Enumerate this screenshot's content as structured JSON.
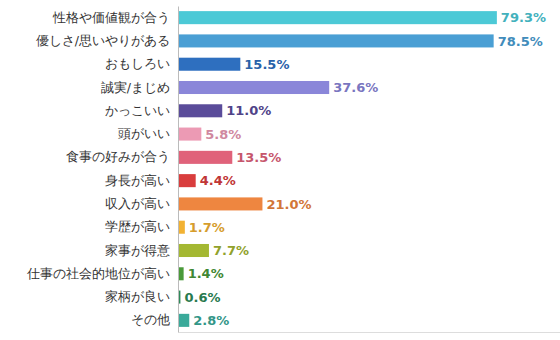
{
  "chart_data": {
    "type": "bar",
    "orientation": "horizontal",
    "categories": [
      "性格や価値観が合う",
      "優しさ/思いやりがある",
      "おもしろい",
      "誠実/まじめ",
      "かっこいい",
      "頭がいい",
      "食事の好みが合う",
      "身長が高い",
      "収入が高い",
      "学歴が高い",
      "家事が得意",
      "仕事の社会的地位が高い",
      "家柄が良い",
      "その他"
    ],
    "values": [
      79.3,
      78.5,
      15.5,
      37.6,
      11.0,
      5.8,
      13.5,
      4.4,
      21.0,
      1.7,
      7.7,
      1.4,
      0.6,
      2.8
    ],
    "value_labels": [
      "79.3%",
      "78.5%",
      "15.5%",
      "37.6%",
      "11.0%",
      "5.8%",
      "13.5%",
      "4.4%",
      "21.0%",
      "1.7%",
      "7.7%",
      "1.4%",
      "0.6%",
      "2.8%"
    ],
    "colors": [
      "#4cc9d6",
      "#4a9fd4",
      "#2e6fbf",
      "#8a86d9",
      "#5a4c9a",
      "#ec9ab4",
      "#e0627a",
      "#d93d3d",
      "#ee8640",
      "#f2b233",
      "#a4b832",
      "#4a9a3a",
      "#2f8a5a",
      "#3aaa9a"
    ],
    "xlim": [
      0,
      95
    ],
    "data_labels": true,
    "tick_labels": "y",
    "grid": false
  }
}
